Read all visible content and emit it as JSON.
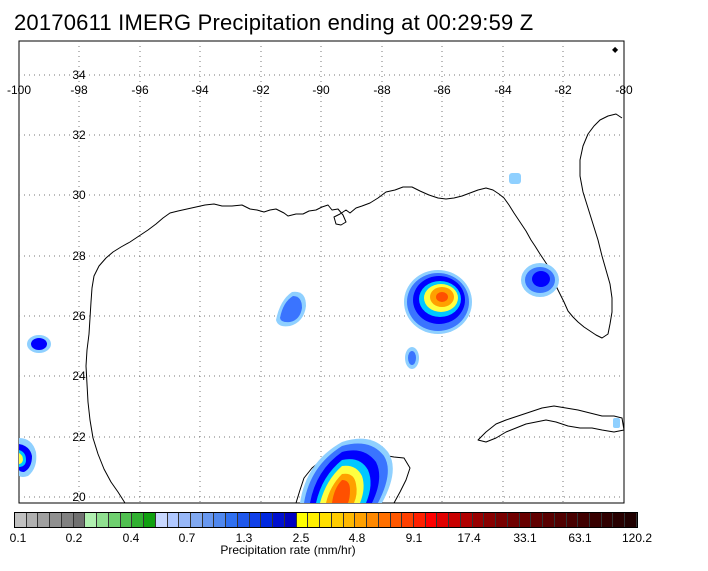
{
  "title": "20170611 IMERG Precipitation ending at 00:29:59 Z",
  "map": {
    "lon_labels": [
      "-100",
      "-98",
      "-96",
      "-94",
      "-92",
      "-90",
      "-88",
      "-86",
      "-84",
      "-82",
      "-80"
    ],
    "lat_labels": [
      "20",
      "22",
      "24",
      "26",
      "28",
      "30",
      "32",
      "34"
    ],
    "lon_range": [
      -100,
      -80
    ],
    "lat_range": [
      19.8,
      35
    ],
    "grid": "dotted",
    "features": [
      "coastline",
      "precipitation-contours"
    ]
  },
  "colorbar": {
    "title": "Precipitation rate (mm/hr)",
    "labels": [
      "0.1",
      "0.2",
      "0.4",
      "0.7",
      "1.3",
      "2.5",
      "4.8",
      "9.1",
      "17.4",
      "33.1",
      "63.1",
      "120.2"
    ],
    "colors": [
      "#c0c0c0",
      "#b0b0b0",
      "#a0a0a0",
      "#909090",
      "#808080",
      "#707070",
      "#b0f0b0",
      "#90e090",
      "#70d070",
      "#50c050",
      "#30b030",
      "#10a010",
      "#c8d8ff",
      "#b0c8ff",
      "#98b8f8",
      "#80a8f0",
      "#6898f0",
      "#5088ee",
      "#3070f0",
      "#2058ec",
      "#1040e8",
      "#0028e0",
      "#0010d0",
      "#0000c0",
      "#ffff00",
      "#fff000",
      "#ffe000",
      "#ffcc00",
      "#ffb800",
      "#ffa000",
      "#ff8800",
      "#ff7000",
      "#ff5800",
      "#ff4000",
      "#ff2000",
      "#ff0000",
      "#e00000",
      "#c80000",
      "#b00000",
      "#980000",
      "#880000",
      "#780000",
      "#700000",
      "#680000",
      "#600000",
      "#580000",
      "#500000",
      "#480000",
      "#400000",
      "#380000",
      "#300000",
      "#280000",
      "#200000"
    ]
  },
  "precipitation_cells": [
    {
      "id": "cell-86-26.6",
      "peak": "4.8-9.1"
    },
    {
      "id": "cell-89-20.5",
      "peak": "9.1-17.4"
    },
    {
      "id": "cell-82.5-27.3",
      "peak": "1.3-2.5"
    },
    {
      "id": "cell-91-26.3",
      "peak": "0.7-1.3"
    },
    {
      "id": "cell-99.5-25.2",
      "peak": "1.3-2.5"
    },
    {
      "id": "cell-100-21.5",
      "peak": "4.8-9.1"
    },
    {
      "id": "cell-87-24.7",
      "peak": "0.7-1.3"
    },
    {
      "id": "cell-83-30.7",
      "peak": "0.4-0.7"
    }
  ]
}
